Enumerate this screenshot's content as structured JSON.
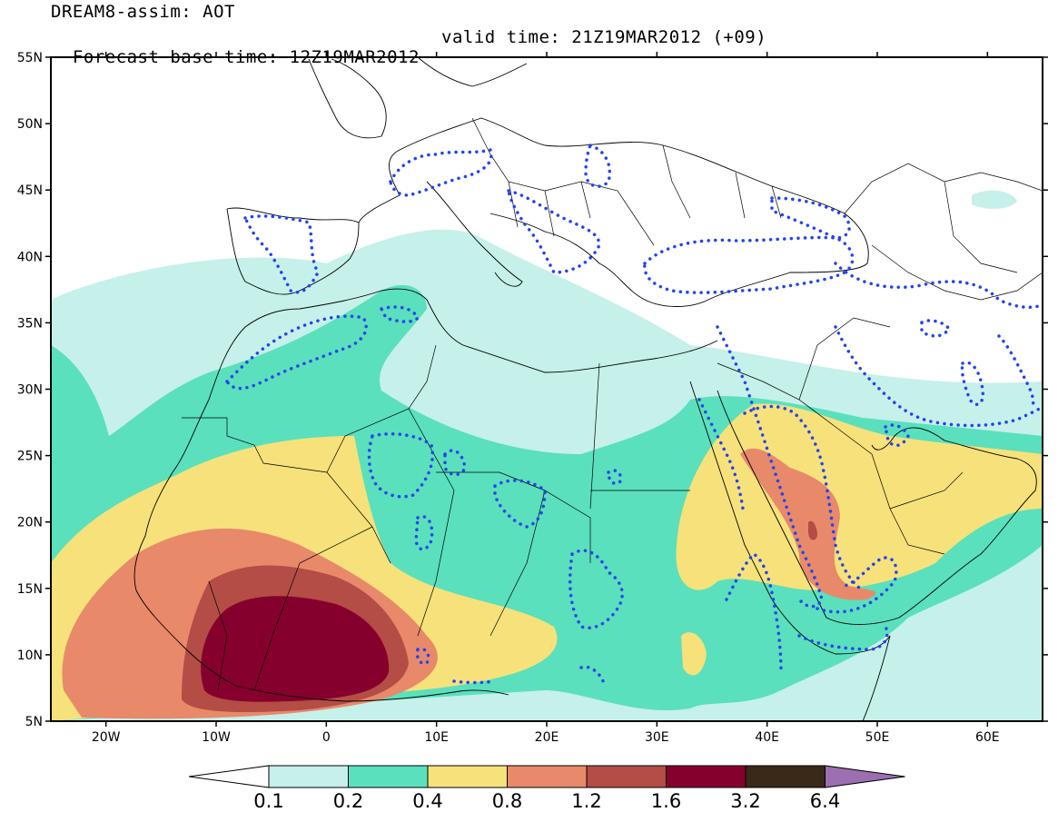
{
  "header": {
    "title": "DREAM8-assim: AOT",
    "base_time": "Forecast base time: 12Z19MAR2012",
    "valid_time": "valid time: 21Z19MAR2012 (+09)"
  },
  "map": {
    "lat_labels": [
      "55N",
      "50N",
      "45N",
      "40N",
      "35N",
      "30N",
      "25N",
      "20N",
      "15N",
      "10N",
      "5N"
    ],
    "lon_labels": [
      "20W",
      "10W",
      "0",
      "10E",
      "20E",
      "30E",
      "40E",
      "50E",
      "60E"
    ],
    "lat_values": [
      55,
      50,
      45,
      40,
      35,
      30,
      25,
      20,
      15,
      10,
      5
    ],
    "lon_values": [
      -20,
      -10,
      0,
      10,
      20,
      30,
      40,
      50,
      60
    ],
    "lon_range": [
      -25,
      65
    ],
    "lat_range": [
      5,
      55
    ],
    "dotted_contour_color": "#2244ee"
  },
  "legend": {
    "levels": [
      "0.1",
      "0.2",
      "0.4",
      "0.8",
      "1.2",
      "1.6",
      "3.2",
      "6.4"
    ],
    "colors": [
      "#ffffff",
      "#c6f0ea",
      "#5ae0bc",
      "#f7e17b",
      "#e8896a",
      "#b34d45",
      "#86002e",
      "#3a2818",
      "#9b6fb0"
    ]
  }
}
